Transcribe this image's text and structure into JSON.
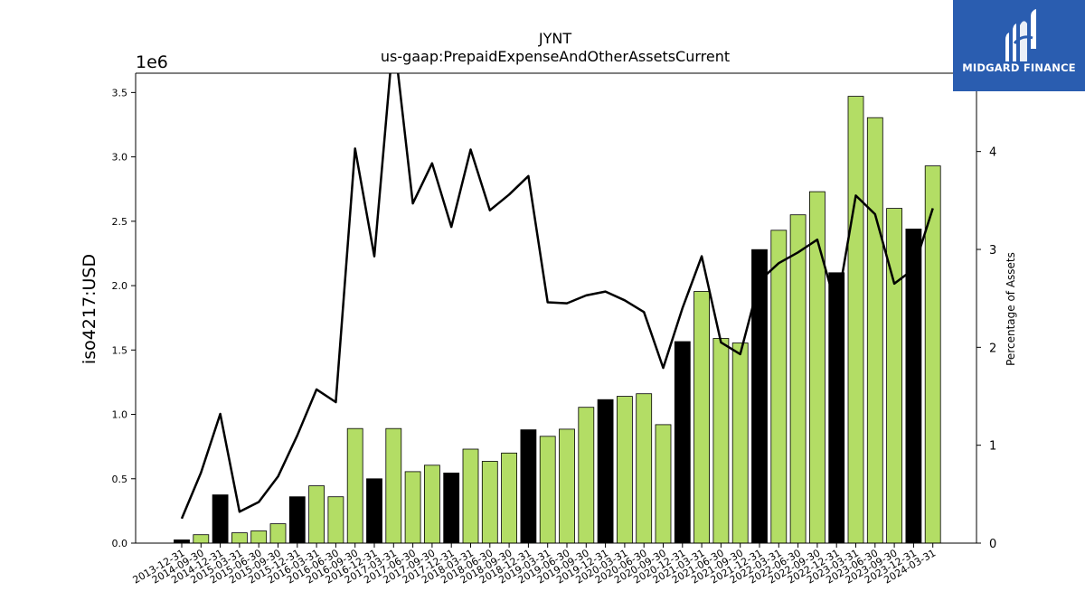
{
  "chart_data": {
    "type": "bar",
    "title": "JYNT",
    "subtitle": "us-gaap:PrepaidExpenseAndOtherAssetsCurrent",
    "ylabel": "iso4217:USD",
    "y_multiplier": "1e6",
    "y2label": "Percentage of Assets",
    "ylim": [
      0,
      3650000
    ],
    "y2lim": [
      0,
      4.8
    ],
    "yticks": [
      "0.0",
      "0.5",
      "1.0",
      "1.5",
      "2.0",
      "2.5",
      "3.0",
      "3.5"
    ],
    "y2ticks": [
      "0",
      "1",
      "2",
      "3",
      "4"
    ],
    "categories": [
      "2013-12-31",
      "2014-09-30",
      "2014-12-31",
      "2015-03-31",
      "2015-06-30",
      "2015-09-30",
      "2015-12-31",
      "2016-03-31",
      "2016-06-30",
      "2016-09-30",
      "2016-12-31",
      "2017-03-31",
      "2017-06-30",
      "2017-09-30",
      "2017-12-31",
      "2018-03-31",
      "2018-06-30",
      "2018-09-30",
      "2018-12-31",
      "2019-03-31",
      "2019-06-30",
      "2019-09-30",
      "2019-12-31",
      "2020-03-31",
      "2020-06-30",
      "2020-09-30",
      "2020-12-31",
      "2021-03-31",
      "2021-06-30",
      "2021-09-30",
      "2021-12-31",
      "2022-03-31",
      "2022-06-30",
      "2022-09-30",
      "2022-12-31",
      "2023-03-31",
      "2023-06-30",
      "2023-09-30",
      "2023-12-31",
      "2024-03-31"
    ],
    "values": [
      25000,
      65000,
      375000,
      80000,
      95000,
      150000,
      360000,
      445000,
      360000,
      890000,
      500000,
      890000,
      555000,
      605000,
      545000,
      730000,
      635000,
      700000,
      880000,
      830000,
      885000,
      1055000,
      1115000,
      1140000,
      1160000,
      920000,
      1565000,
      1955000,
      1590000,
      1555000,
      2280000,
      2430000,
      2550000,
      2730000,
      2100000,
      3470000,
      3305000,
      2600000,
      2440000,
      2930000
    ],
    "annual": [
      true,
      false,
      true,
      false,
      false,
      false,
      true,
      false,
      false,
      false,
      true,
      false,
      false,
      false,
      true,
      false,
      false,
      false,
      true,
      false,
      false,
      false,
      true,
      false,
      false,
      false,
      true,
      false,
      false,
      false,
      true,
      false,
      false,
      false,
      true,
      false,
      false,
      false,
      true,
      false
    ],
    "pct_assets": [
      0.25,
      0.72,
      1.32,
      0.32,
      0.42,
      0.68,
      1.1,
      1.57,
      1.44,
      4.03,
      2.93,
      5.2,
      3.47,
      3.88,
      3.23,
      4.02,
      3.4,
      3.56,
      3.75,
      2.46,
      2.45,
      2.53,
      2.57,
      2.48,
      2.36,
      1.79,
      2.4,
      2.93,
      2.05,
      1.93,
      2.68,
      2.86,
      2.97,
      3.1,
      2.4,
      3.55,
      3.36,
      2.65,
      2.8,
      3.42
    ],
    "colors": {
      "annual": "#000000",
      "quarterly": "#b3dd65",
      "line": "#000000"
    }
  },
  "logo": {
    "text": "MIDGARD FINANCE",
    "color": "#2a5db0"
  }
}
